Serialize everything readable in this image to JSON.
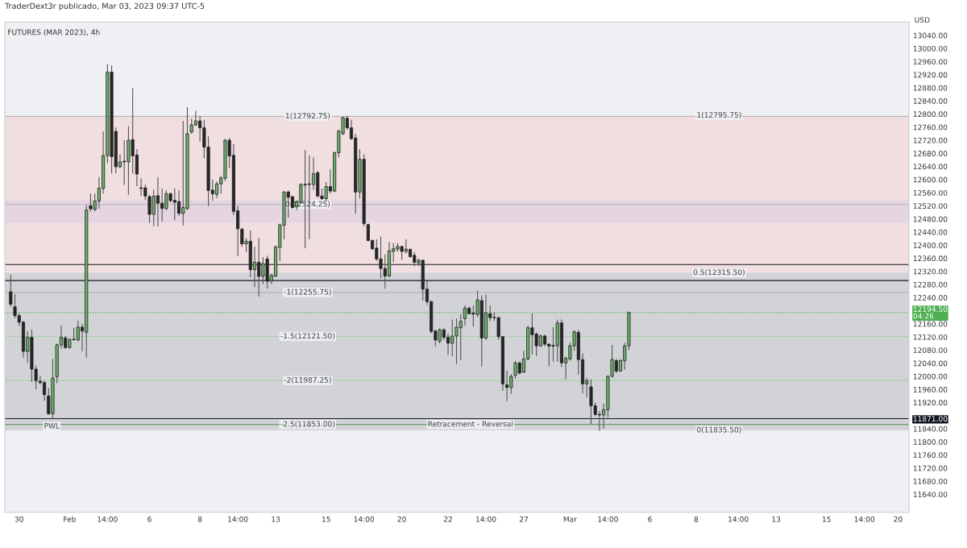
{
  "chart_data": {
    "type": "candlestick",
    "title": "TraderDext3r publicado, Mar 03, 2023 09:37 UTC-5",
    "subtitle": "FUTURES (MAR 2023), 4h",
    "ylabel": "USD",
    "categories": [
      null,
      null,
      "30",
      null,
      null,
      null,
      null,
      null,
      null,
      null,
      null,
      null,
      null,
      null,
      "Feb",
      null,
      null,
      null,
      null,
      null,
      null,
      null,
      null,
      "14:00",
      null,
      null,
      null,
      null,
      null,
      null,
      null,
      null,
      null,
      "6",
      null,
      null,
      null,
      null,
      null,
      null,
      null,
      null,
      null,
      null,
      null,
      "8",
      null,
      null,
      null,
      null,
      null,
      null,
      null,
      null,
      "14:00",
      null,
      null,
      null,
      null,
      null,
      null,
      null,
      null,
      "13",
      null,
      null,
      null,
      null,
      null,
      null,
      null,
      null,
      null,
      null,
      null,
      "15",
      null,
      null,
      null,
      null,
      null,
      null,
      null,
      null,
      "14:00",
      null,
      null,
      null,
      null,
      null,
      null,
      null,
      null,
      "20",
      null,
      null,
      null,
      null,
      null,
      null,
      null,
      null,
      null,
      null,
      "22",
      null,
      null,
      null,
      null,
      null,
      null,
      null,
      null,
      "14:00",
      null,
      null,
      null,
      null,
      null,
      null,
      null,
      null,
      "27",
      null,
      null,
      null,
      null,
      null,
      null,
      null,
      null,
      null,
      null,
      "Mar",
      null,
      null,
      null,
      null,
      null,
      null,
      null,
      null,
      "14:00",
      null,
      null,
      null,
      null,
      null,
      null,
      null,
      null,
      null,
      "6",
      null,
      null,
      null,
      null,
      null,
      null,
      null,
      null,
      null,
      null,
      "8",
      null,
      null,
      null,
      null,
      null,
      null,
      null,
      null,
      null,
      "14:00",
      null,
      null,
      null,
      null,
      null,
      null,
      null,
      null,
      "13",
      null,
      null,
      null,
      null,
      null,
      null,
      null,
      null,
      null,
      null,
      null,
      "15",
      null,
      null,
      null,
      null,
      null,
      null,
      null,
      null,
      "14:00",
      null,
      null,
      null,
      null,
      null,
      null,
      null,
      "20",
      null,
      null
    ],
    "ohlc": [
      [
        12258,
        12309,
        12212,
        12220
      ],
      [
        12212,
        12251,
        12177,
        12185
      ],
      [
        12185,
        12193,
        12154,
        12165
      ],
      [
        12165,
        12169,
        12057,
        12076
      ],
      [
        12076,
        12138,
        12041,
        12119
      ],
      [
        12119,
        12142,
        11983,
        12022
      ],
      [
        12022,
        12033,
        11960,
        11987
      ],
      [
        11985,
        12002,
        11975,
        11981
      ],
      [
        11981,
        11987,
        11925,
        11944
      ],
      [
        11940,
        11964,
        11882,
        11886
      ],
      [
        11886,
        12053,
        11871,
        11995
      ],
      [
        11999,
        12100,
        11979,
        12096
      ],
      [
        12096,
        12154,
        12084,
        12119
      ],
      [
        12117,
        12123,
        12084,
        12088
      ],
      [
        12088,
        12115,
        12084,
        12113
      ],
      [
        12113,
        12148,
        12111,
        12111
      ],
      [
        12111,
        12169,
        12107,
        12150
      ],
      [
        12150,
        12161,
        12076,
        12138
      ],
      [
        12134,
        12522,
        12057,
        12507
      ],
      [
        12520,
        12557,
        12503,
        12511
      ],
      [
        12509,
        12557,
        12503,
        12535
      ],
      [
        12535,
        12608,
        12511,
        12574
      ],
      [
        12573,
        12747,
        12557,
        12673
      ],
      [
        12673,
        12953,
        12650,
        12928
      ],
      [
        12928,
        12949,
        12619,
        12670
      ],
      [
        12747,
        12759,
        12619,
        12639
      ],
      [
        12639,
        12677,
        12635,
        12654
      ],
      [
        12656,
        12720,
        12584,
        12654
      ],
      [
        12654,
        12763,
        12553,
        12720
      ],
      [
        12722,
        12879,
        12619,
        12673
      ],
      [
        12675,
        12693,
        12580,
        12617
      ],
      [
        12575,
        12604,
        12550,
        12573
      ],
      [
        12575,
        12585,
        12538,
        12550
      ],
      [
        12548,
        12554,
        12468,
        12494
      ],
      [
        12494,
        12569,
        12458,
        12550
      ],
      [
        12551,
        12608,
        12457,
        12528
      ],
      [
        12528,
        12573,
        12471,
        12512
      ],
      [
        12512,
        12567,
        12507,
        12557
      ],
      [
        12557,
        12561,
        12530,
        12536
      ],
      [
        12537,
        12573,
        12476,
        12531
      ],
      [
        12533,
        12567,
        12489,
        12497
      ],
      [
        12497,
        12779,
        12460,
        12515
      ],
      [
        12512,
        12821,
        12507,
        12740
      ],
      [
        12745,
        12786,
        12740,
        12767
      ],
      [
        12767,
        12810,
        12763,
        12779
      ],
      [
        12779,
        12794,
        12716,
        12758
      ],
      [
        12758,
        12782,
        12665,
        12699
      ],
      [
        12699,
        12732,
        12519,
        12567
      ],
      [
        12568,
        12600,
        12536,
        12557
      ],
      [
        12555,
        12595,
        12543,
        12587
      ],
      [
        12587,
        12612,
        12557,
        12605
      ],
      [
        12604,
        12724,
        12596,
        12720
      ],
      [
        12720,
        12727,
        12635,
        12672
      ],
      [
        12674,
        12709,
        12492,
        12503
      ],
      [
        12505,
        12519,
        12367,
        12450
      ],
      [
        12449,
        12453,
        12395,
        12404
      ],
      [
        12404,
        12422,
        12379,
        12412
      ],
      [
        12412,
        12445,
        12302,
        12325
      ],
      [
        12325,
        12395,
        12272,
        12348
      ],
      [
        12348,
        12422,
        12243,
        12305
      ],
      [
        12305,
        12364,
        12282,
        12344
      ],
      [
        12358,
        12368,
        12267,
        12290
      ],
      [
        12290,
        12313,
        12282,
        12308
      ],
      [
        12306,
        12399,
        12302,
        12395
      ],
      [
        12393,
        12466,
        12352,
        12462
      ],
      [
        12461,
        12565,
        12418,
        12562
      ],
      [
        12562,
        12567,
        12484,
        12546
      ],
      [
        12548,
        12550,
        12511,
        12515
      ],
      [
        12517,
        12538,
        12507,
        12532
      ],
      [
        12530,
        12589,
        12527,
        12585
      ],
      [
        12583,
        12690,
        12391,
        12586
      ],
      [
        12587,
        12674,
        12418,
        12585
      ],
      [
        12585,
        12668,
        12569,
        12618
      ],
      [
        12621,
        12626,
        12546,
        12550
      ],
      [
        12550,
        12573,
        12538,
        12542
      ],
      [
        12542,
        12593,
        12534,
        12579
      ],
      [
        12579,
        12631,
        12558,
        12565
      ],
      [
        12565,
        12686,
        12562,
        12682
      ],
      [
        12682,
        12753,
        12668,
        12748
      ],
      [
        12740,
        12792,
        12736,
        12789
      ],
      [
        12787,
        12795,
        12752,
        12758
      ],
      [
        12758,
        12783,
        12721,
        12725
      ],
      [
        12727,
        12740,
        12496,
        12562
      ],
      [
        12562,
        12693,
        12542,
        12662
      ],
      [
        12662,
        12678,
        12457,
        12466
      ],
      [
        12463,
        12466,
        12412,
        12414
      ],
      [
        12414,
        12418,
        12386,
        12389
      ],
      [
        12391,
        12418,
        12352,
        12358
      ],
      [
        12358,
        12426,
        12298,
        12329
      ],
      [
        12329,
        12372,
        12267,
        12306
      ],
      [
        12306,
        12410,
        12302,
        12383
      ],
      [
        12381,
        12406,
        12348,
        12389
      ],
      [
        12388,
        12406,
        12380,
        12396
      ],
      [
        12396,
        12398,
        12356,
        12381
      ],
      [
        12381,
        12418,
        12375,
        12388
      ],
      [
        12387,
        12390,
        12362,
        12365
      ],
      [
        12369,
        12379,
        12336,
        12348
      ],
      [
        12346,
        12359,
        12336,
        12354
      ],
      [
        12354,
        12356,
        12231,
        12266
      ],
      [
        12266,
        12294,
        12218,
        12228
      ],
      [
        12228,
        12230,
        12131,
        12137
      ],
      [
        12138,
        12142,
        12092,
        12111
      ],
      [
        12107,
        12146,
        12100,
        12142
      ],
      [
        12142,
        12146,
        12111,
        12119
      ],
      [
        12119,
        12131,
        12065,
        12101
      ],
      [
        12101,
        12173,
        12062,
        12123
      ],
      [
        12123,
        12177,
        12038,
        12150
      ],
      [
        12148,
        12189,
        12049,
        12168
      ],
      [
        12176,
        12216,
        12154,
        12208
      ],
      [
        12208,
        12212,
        12189,
        12191
      ],
      [
        12193,
        12216,
        12152,
        12190
      ],
      [
        12189,
        12261,
        12181,
        12233
      ],
      [
        12231,
        12247,
        12030,
        12117
      ],
      [
        12117,
        12249,
        12111,
        12194
      ],
      [
        12191,
        12216,
        12169,
        12179
      ],
      [
        12180,
        12195,
        12169,
        12179
      ],
      [
        12179,
        12181,
        12111,
        12121
      ],
      [
        12121,
        12123,
        11956,
        11977
      ],
      [
        11974,
        12018,
        11925,
        11966
      ],
      [
        11966,
        12006,
        11946,
        12000
      ],
      [
        12003,
        12047,
        11993,
        12041
      ],
      [
        12041,
        12045,
        12006,
        12010
      ],
      [
        12013,
        12078,
        12010,
        12053
      ],
      [
        12053,
        12154,
        12049,
        12148
      ],
      [
        12148,
        12191,
        12067,
        12127
      ],
      [
        12129,
        12134,
        12062,
        12093
      ],
      [
        12093,
        12127,
        12090,
        12123
      ],
      [
        12123,
        12127,
        12092,
        12098
      ],
      [
        12098,
        12101,
        12031,
        12092
      ],
      [
        12094,
        12150,
        12045,
        12092
      ],
      [
        12093,
        12173,
        12045,
        12163
      ],
      [
        12163,
        12173,
        12028,
        12041
      ],
      [
        12041,
        12061,
        11991,
        12055
      ],
      [
        12053,
        12103,
        12047,
        12093
      ],
      [
        12093,
        12140,
        12078,
        12136
      ],
      [
        12134,
        12142,
        12005,
        12051
      ],
      [
        12051,
        12070,
        11948,
        11977
      ],
      [
        11977,
        11995,
        11937,
        11987
      ],
      [
        11968,
        11991,
        11855,
        11910
      ],
      [
        11910,
        11920,
        11879,
        11884
      ],
      [
        11884,
        11894,
        11834,
        11882
      ],
      [
        11882,
        11917,
        11840,
        11898
      ],
      [
        11898,
        12003,
        11875,
        12000
      ],
      [
        12000,
        12096,
        11997,
        12051
      ],
      [
        12048,
        12053,
        12010,
        12016
      ],
      [
        12016,
        12053,
        12014,
        12048
      ],
      [
        12047,
        12103,
        12020,
        12093
      ],
      [
        12093,
        12197,
        12080,
        12194.5
      ],
      null,
      null,
      null,
      null,
      null,
      null,
      null,
      null,
      null,
      null,
      null,
      null,
      null,
      null,
      null,
      null,
      null,
      null,
      null,
      null,
      null,
      null,
      null,
      null,
      null,
      null,
      null,
      null,
      null,
      null,
      null,
      null,
      null,
      null,
      null,
      null,
      null,
      null,
      null,
      null,
      null,
      null,
      null,
      null,
      null,
      null,
      null,
      null,
      null,
      null,
      null,
      null,
      null,
      null,
      null,
      null,
      null,
      null,
      null,
      null,
      null,
      null,
      null,
      null,
      null,
      null
    ],
    "colors": [
      "#262626",
      "#262626",
      "#262626",
      "#262626",
      "#6cb46c",
      "#262626",
      "#262626",
      "#262626",
      "#262626",
      "#262626",
      "#6cb46c",
      "#6cb46c",
      "#6cb46c",
      "#262626",
      "#6cb46c",
      "#262626",
      "#6cb46c",
      "#262626",
      "#6cb46c",
      "#262626",
      "#6cb46c",
      "#6cb46c",
      "#6cb46c",
      "#6cb46c",
      "#262626",
      "#262626",
      "#6cb46c",
      "#262626",
      "#6cb46c",
      "#262626",
      "#262626",
      "#262626",
      "#262626",
      "#262626",
      "#6cb46c",
      "#262626",
      "#262626",
      "#6cb46c",
      "#262626",
      "#262626",
      "#262626",
      "#6cb46c",
      "#6cb46c",
      "#6cb46c",
      "#6cb46c",
      "#262626",
      "#262626",
      "#262626",
      "#262626",
      "#6cb46c",
      "#6cb46c",
      "#6cb46c",
      "#262626",
      "#262626",
      "#262626",
      "#262626",
      "#6cb46c",
      "#262626",
      "#6cb46c",
      "#262626",
      "#6cb46c",
      "#262626",
      "#6cb46c",
      "#6cb46c",
      "#6cb46c",
      "#6cb46c",
      "#262626",
      "#262626",
      "#6cb46c",
      "#6cb46c",
      "#6cb46c",
      "#262626",
      "#6cb46c",
      "#262626",
      "#262626",
      "#6cb46c",
      "#262626",
      "#6cb46c",
      "#6cb46c",
      "#6cb46c",
      "#262626",
      "#262626",
      "#262626",
      "#6cb46c",
      "#262626",
      "#262626",
      "#262626",
      "#262626",
      "#262626",
      "#262626",
      "#6cb46c",
      "#6cb46c",
      "#6cb46c",
      "#262626",
      "#6cb46c",
      "#262626",
      "#262626",
      "#6cb46c",
      "#262626",
      "#262626",
      "#262626",
      "#262626",
      "#6cb46c",
      "#262626",
      "#262626",
      "#6cb46c",
      "#6cb46c",
      "#6cb46c",
      "#6cb46c",
      "#262626",
      "#262626",
      "#6cb46c",
      "#262626",
      "#6cb46c",
      "#262626",
      "#262626",
      "#262626",
      "#262626",
      "#262626",
      "#6cb46c",
      "#6cb46c",
      "#262626",
      "#6cb46c",
      "#6cb46c",
      "#262626",
      "#262626",
      "#6cb46c",
      "#262626",
      "#262626",
      "#262626",
      "#6cb46c",
      "#262626",
      "#6cb46c",
      "#6cb46c",
      "#6cb46c",
      "#262626",
      "#262626",
      "#6cb46c",
      "#262626",
      "#262626",
      "#262626",
      "#6cb46c",
      "#6cb46c",
      "#6cb46c",
      "#262626",
      "#6cb46c",
      "#6cb46c",
      "#6cb46c",
      null,
      null,
      null,
      null,
      null,
      null,
      null,
      null,
      null,
      null,
      null,
      null,
      null,
      null,
      null,
      null,
      null,
      null,
      null,
      null,
      null,
      null,
      null,
      null,
      null,
      null,
      null,
      null,
      null,
      null,
      null,
      null,
      null,
      null,
      null,
      null,
      null,
      null,
      null,
      null,
      null,
      null,
      null,
      null,
      null,
      null,
      null,
      null,
      null,
      null,
      null,
      null,
      null,
      null,
      null,
      null,
      null,
      null,
      null,
      null,
      null,
      null,
      null,
      null,
      null,
      null
    ],
    "ylim": [
      11585,
      13081
    ],
    "yticks": [
      {
        "value": 11640,
        "label": "11640.00"
      },
      {
        "value": 11680,
        "label": "11680.00"
      },
      {
        "value": 11720,
        "label": "11720.00"
      },
      {
        "value": 11760,
        "label": "11760.00"
      },
      {
        "value": 11800,
        "label": "11800.00"
      },
      {
        "value": 11840,
        "label": "11840.00"
      },
      {
        "value": 11871,
        "label": "11871.00"
      },
      {
        "value": 11920,
        "label": "11920.00"
      },
      {
        "value": 11960,
        "label": "11960.00"
      },
      {
        "value": 12000,
        "label": "12000.00"
      },
      {
        "value": 12040,
        "label": "12040.00"
      },
      {
        "value": 12080,
        "label": "12080.00"
      },
      {
        "value": 12120,
        "label": "12120.00"
      },
      {
        "value": 12160,
        "label": "12160.00"
      },
      {
        "value": 12194.5,
        "label": "12194.50\n04:26"
      },
      {
        "value": 12240,
        "label": "12240.00"
      },
      {
        "value": 12280,
        "label": "12280.00"
      },
      {
        "value": 12320,
        "label": "12320.00"
      },
      {
        "value": 12360,
        "label": "12360.00"
      },
      {
        "value": 12400,
        "label": "12400.00"
      },
      {
        "value": 12440,
        "label": "12440.00"
      },
      {
        "value": 12480,
        "label": "12480.00"
      },
      {
        "value": 12520,
        "label": "12520.00"
      },
      {
        "value": 12560,
        "label": "12560.00"
      },
      {
        "value": 12600,
        "label": "12600.00"
      },
      {
        "value": 12640,
        "label": "12640.00"
      },
      {
        "value": 12680,
        "label": "12680.00"
      },
      {
        "value": 12720,
        "label": "12720.00"
      },
      {
        "value": 12760,
        "label": "12760.00"
      },
      {
        "value": 12800,
        "label": "12800.00"
      },
      {
        "value": 12840,
        "label": "12840.00"
      },
      {
        "value": 12880,
        "label": "12880.00"
      },
      {
        "value": 12920,
        "label": "12920.00"
      },
      {
        "value": 12960,
        "label": "12960.00"
      },
      {
        "value": 13000,
        "label": "13000.00"
      },
      {
        "value": 13040,
        "label": "13040.00"
      }
    ],
    "ref_lines": [
      {
        "axis": "y",
        "value": 11871,
        "color": "#131722",
        "line_style": "solid"
      },
      {
        "axis": "y",
        "value": 12194.5,
        "color": "#4caf50",
        "line_style": "dotted"
      },
      {
        "axis": "y",
        "value": 12341,
        "color": "#131722",
        "line_style": "solid"
      },
      {
        "axis": "y",
        "value": 12292,
        "color": "#131722",
        "line_style": "solid"
      },
      {
        "axis": "y",
        "value": 12792.75,
        "color": "#b0b3ba",
        "line_style": "solid"
      },
      {
        "axis": "y",
        "value": 12524.25,
        "color": "#b0b3ba",
        "line_style": "solid"
      },
      {
        "axis": "y",
        "value": 12255.75,
        "color": "#b0b3ba",
        "line_style": "solid"
      },
      {
        "axis": "y",
        "value": 12121.5,
        "color": "#a8cfa8",
        "line_style": "solid"
      },
      {
        "axis": "y",
        "value": 11987.25,
        "color": "#a8cfa8",
        "line_style": "solid"
      },
      {
        "axis": "y",
        "value": 11853,
        "color": "#4c8c4c",
        "line_style": "solid"
      }
    ],
    "bands": [
      {
        "axis": "y",
        "from": 12469,
        "to": 12537,
        "color": "#b9c8f2"
      },
      {
        "axis": "y",
        "from": 12315.5,
        "to": 12795.75,
        "color": "#f4bcbc"
      },
      {
        "axis": "y",
        "from": 11835.5,
        "to": 12315.5,
        "color": "#9d9d9d"
      }
    ],
    "annotations": [
      {
        "text": "PWL",
        "y": 11871
      },
      {
        "text": "Retracement - Reversal",
        "y": 11853
      },
      {
        "text": "1(12792.75)",
        "y": 12792.75
      },
      {
        "text": "0(12524.25)",
        "y": 12524.25
      },
      {
        "text": "-1(12255.75)",
        "y": 12255.75
      },
      {
        "text": "-1.5(12121.50)",
        "y": 12121.5
      },
      {
        "text": "-2(11987.25)",
        "y": 11987.25
      },
      {
        "text": "-2.5(11853.00)",
        "y": 11853
      },
      {
        "text": "1(12795.75)",
        "y": 12795.75
      },
      {
        "text": "0.5(12315.50)",
        "y": 12315.5
      },
      {
        "text": "0(11835.50)",
        "y": 11835.5
      }
    ],
    "grid": false
  }
}
